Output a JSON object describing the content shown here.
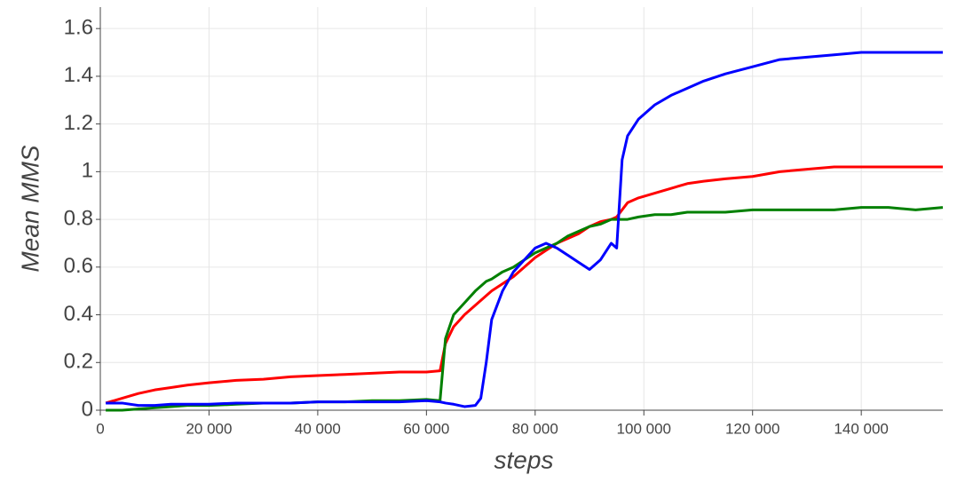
{
  "chart_data": {
    "type": "line",
    "x_label": "steps",
    "y_label": "Mean MMS",
    "x": [
      1000,
      4000,
      7000,
      10000,
      13000,
      16000,
      20000,
      25000,
      30000,
      35000,
      40000,
      45000,
      50000,
      55000,
      60000,
      62500,
      63500,
      65000,
      67000,
      69000,
      70000,
      71000,
      72000,
      74000,
      76000,
      78000,
      80000,
      82000,
      84000,
      86000,
      88000,
      90000,
      92000,
      94000,
      95000,
      96000,
      97000,
      99000,
      102000,
      105000,
      108000,
      111000,
      115000,
      120000,
      125000,
      130000,
      135000,
      140000,
      145000,
      150000,
      155000
    ],
    "series": [
      {
        "color": "#ff0000",
        "values": [
          0.03,
          0.05,
          0.07,
          0.085,
          0.095,
          0.105,
          0.115,
          0.125,
          0.13,
          0.14,
          0.145,
          0.15,
          0.155,
          0.16,
          0.16,
          0.165,
          0.28,
          0.35,
          0.4,
          0.44,
          0.46,
          0.48,
          0.5,
          0.53,
          0.56,
          0.6,
          0.64,
          0.67,
          0.7,
          0.72,
          0.74,
          0.77,
          0.79,
          0.8,
          0.81,
          0.84,
          0.87,
          0.89,
          0.91,
          0.93,
          0.95,
          0.96,
          0.97,
          0.98,
          1.0,
          1.01,
          1.02,
          1.02,
          1.02,
          1.02,
          1.02
        ]
      },
      {
        "color": "#008000",
        "values": [
          0,
          0,
          0.005,
          0.01,
          0.015,
          0.02,
          0.02,
          0.025,
          0.03,
          0.03,
          0.035,
          0.035,
          0.04,
          0.04,
          0.045,
          0.04,
          0.3,
          0.4,
          0.45,
          0.5,
          0.52,
          0.54,
          0.55,
          0.58,
          0.6,
          0.63,
          0.66,
          0.68,
          0.7,
          0.73,
          0.75,
          0.77,
          0.78,
          0.8,
          0.8,
          0.8,
          0.8,
          0.81,
          0.82,
          0.82,
          0.83,
          0.83,
          0.83,
          0.84,
          0.84,
          0.84,
          0.84,
          0.85,
          0.85,
          0.84,
          0.85
        ]
      },
      {
        "color": "#0000ff",
        "values": [
          0.03,
          0.03,
          0.02,
          0.02,
          0.025,
          0.025,
          0.025,
          0.03,
          0.03,
          0.03,
          0.035,
          0.035,
          0.035,
          0.035,
          0.04,
          0.035,
          0.03,
          0.025,
          0.015,
          0.02,
          0.05,
          0.2,
          0.38,
          0.5,
          0.58,
          0.63,
          0.68,
          0.7,
          0.68,
          0.65,
          0.62,
          0.59,
          0.63,
          0.7,
          0.68,
          1.05,
          1.15,
          1.22,
          1.28,
          1.32,
          1.35,
          1.38,
          1.41,
          1.44,
          1.47,
          1.48,
          1.49,
          1.5,
          1.5,
          1.5,
          1.5
        ]
      }
    ],
    "xlim": [
      0,
      155000
    ],
    "xticks": [
      0,
      {
        "value": 20000,
        "label": "20 000"
      },
      {
        "value": 40000,
        "label": "40 000"
      },
      {
        "value": 60000,
        "label": "60 000"
      },
      {
        "value": 80000,
        "label": "80 000"
      },
      {
        "value": 100000,
        "label": "100 000"
      },
      {
        "value": 120000,
        "label": "120 000"
      },
      {
        "value": 140000,
        "label": "140 000"
      }
    ],
    "ylim": [
      0,
      1.69
    ],
    "yticks": [
      0,
      0.2,
      0.4,
      0.6,
      0.8,
      1,
      1.2,
      1.4,
      1.6
    ],
    "grid": true
  }
}
